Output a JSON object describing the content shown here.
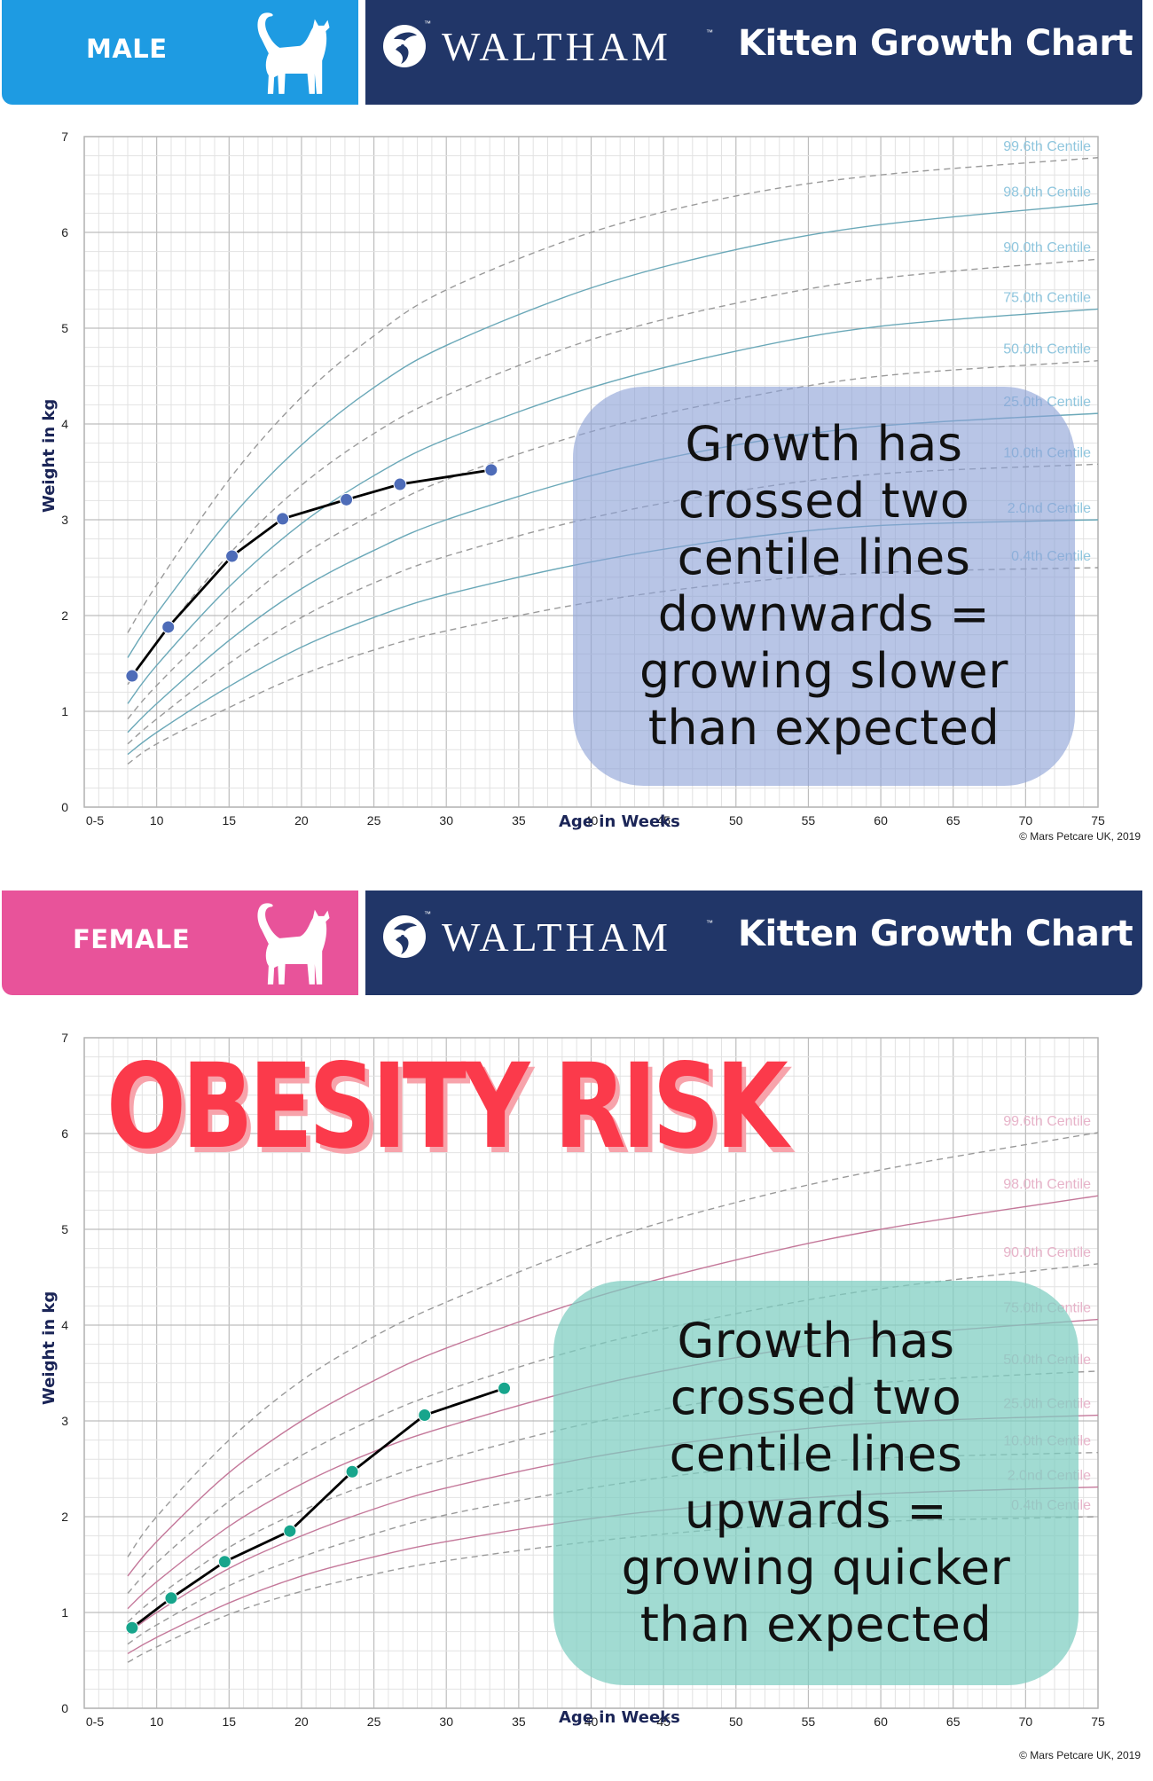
{
  "male": {
    "sex_label": "MALE",
    "brand": "WALTHAM",
    "tm": "™",
    "title": "Kitten Growth Chart",
    "y_axis_title": "Weight in kg",
    "x_axis_title": "Age in Weeks",
    "copyright": "© Mars Petcare UK, 2019",
    "callout": [
      "Growth has",
      "crossed two",
      "centile lines",
      "downwards =",
      "growing slower",
      "than expected"
    ],
    "colors": {
      "panel": "#1e9be2",
      "curve": "#6aa8b8",
      "label": "#8fc6de",
      "point": "#4e6cb8",
      "callout_bg": "#9aaedb"
    }
  },
  "female": {
    "sex_label": "FEMALE",
    "brand": "WALTHAM",
    "tm": "™",
    "title": "Kitten Growth Chart",
    "y_axis_title": "Weight in kg",
    "x_axis_title": "Age in Weeks",
    "copyright": "© Mars Petcare UK, 2019",
    "banner": "OBESITY RISK",
    "callout": [
      "Growth has",
      "crossed two",
      "centile lines",
      "upwards =",
      "growing quicker",
      "than expected"
    ],
    "colors": {
      "panel": "#e8539a",
      "curve": "#c4789a",
      "label": "#e7b3c9",
      "point": "#17a58c",
      "callout_bg": "#8fd3c8"
    }
  },
  "chart_data": [
    {
      "type": "line",
      "title": "WALTHAM Kitten Growth Chart - Male",
      "xlabel": "Age in Weeks",
      "ylabel": "Weight in kg",
      "xlim": [
        5,
        75
      ],
      "ylim": [
        0,
        7
      ],
      "x_ticks": [
        "0-5",
        "10",
        "15",
        "20",
        "25",
        "30",
        "35",
        "40",
        "45",
        "50",
        "55",
        "60",
        "65",
        "70",
        "75"
      ],
      "y_ticks": [
        "0",
        "1",
        "2",
        "3",
        "4",
        "5",
        "6",
        "7"
      ],
      "grid": true,
      "centile_x": [
        8,
        10,
        15,
        20,
        25,
        30,
        40,
        50,
        60,
        75
      ],
      "centiles": [
        {
          "name": "99.6th Centile",
          "style": "dashed",
          "values": [
            1.82,
            2.32,
            3.42,
            4.28,
            4.92,
            5.4,
            6.0,
            6.38,
            6.6,
            6.78
          ]
        },
        {
          "name": "98.0th Centile",
          "style": "solid",
          "values": [
            1.56,
            2.02,
            3.0,
            3.78,
            4.38,
            4.82,
            5.42,
            5.82,
            6.08,
            6.3
          ]
        },
        {
          "name": "90.0th Centile",
          "style": "dashed",
          "values": [
            1.28,
            1.72,
            2.64,
            3.36,
            3.9,
            4.3,
            4.88,
            5.26,
            5.52,
            5.72
          ]
        },
        {
          "name": "75.0th Centile",
          "style": "solid",
          "values": [
            1.08,
            1.48,
            2.3,
            2.96,
            3.46,
            3.84,
            4.38,
            4.76,
            5.02,
            5.2
          ]
        },
        {
          "name": "50.0th Centile",
          "style": "dashed",
          "values": [
            0.92,
            1.27,
            2.01,
            2.62,
            3.06,
            3.42,
            3.92,
            4.26,
            4.5,
            4.66
          ]
        },
        {
          "name": "25.0th Centile",
          "style": "solid",
          "values": [
            0.78,
            1.08,
            1.74,
            2.28,
            2.68,
            3.0,
            3.46,
            3.78,
            3.98,
            4.11
          ]
        },
        {
          "name": "10.0th Centile",
          "style": "dashed",
          "values": [
            0.66,
            0.92,
            1.5,
            1.98,
            2.34,
            2.62,
            3.02,
            3.3,
            3.48,
            3.58
          ]
        },
        {
          "name": "2.0nd Centile",
          "style": "solid",
          "values": [
            0.55,
            0.78,
            1.26,
            1.67,
            1.98,
            2.22,
            2.56,
            2.8,
            2.94,
            3.0
          ]
        },
        {
          "name": "0.4th Centile",
          "style": "dashed",
          "values": [
            0.45,
            0.66,
            1.04,
            1.38,
            1.64,
            1.84,
            2.14,
            2.34,
            2.45,
            2.5
          ]
        }
      ],
      "series": [
        {
          "name": "Kitten weight",
          "x": [
            8.3,
            10.8,
            15.2,
            18.7,
            23.1,
            26.8,
            33.1
          ],
          "values": [
            1.37,
            1.88,
            2.62,
            3.01,
            3.21,
            3.37,
            3.52
          ]
        }
      ]
    },
    {
      "type": "line",
      "title": "WALTHAM Kitten Growth Chart - Female",
      "xlabel": "Age in Weeks",
      "ylabel": "Weight in kg",
      "xlim": [
        5,
        75
      ],
      "ylim": [
        0,
        7
      ],
      "x_ticks": [
        "0-5",
        "10",
        "15",
        "20",
        "25",
        "30",
        "35",
        "40",
        "45",
        "50",
        "55",
        "60",
        "65",
        "70",
        "75"
      ],
      "y_ticks": [
        "0",
        "1",
        "2",
        "3",
        "4",
        "5",
        "6",
        "7"
      ],
      "grid": true,
      "annotation": "OBESITY RISK",
      "centile_x": [
        8,
        10,
        15,
        20,
        25,
        30,
        40,
        50,
        60,
        75
      ],
      "centiles": [
        {
          "name": "99.6th Centile",
          "style": "dashed",
          "values": [
            1.58,
            2.0,
            2.8,
            3.42,
            3.88,
            4.24,
            4.84,
            5.28,
            5.62,
            6.01
          ]
        },
        {
          "name": "98.0th Centile",
          "style": "solid",
          "values": [
            1.38,
            1.74,
            2.46,
            3.0,
            3.42,
            3.76,
            4.28,
            4.68,
            5.0,
            5.35
          ]
        },
        {
          "name": "90.0th Centile",
          "style": "dashed",
          "values": [
            1.2,
            1.52,
            2.16,
            2.64,
            3.02,
            3.32,
            3.78,
            4.12,
            4.38,
            4.64
          ]
        },
        {
          "name": "75.0th Centile",
          "style": "solid",
          "values": [
            1.04,
            1.32,
            1.9,
            2.34,
            2.68,
            2.94,
            3.36,
            3.66,
            3.88,
            4.06
          ]
        },
        {
          "name": "50.0th Centile",
          "style": "dashed",
          "values": [
            0.9,
            1.16,
            1.68,
            2.06,
            2.36,
            2.6,
            2.98,
            3.24,
            3.4,
            3.52
          ]
        },
        {
          "name": "25.0th Centile",
          "style": "solid",
          "values": [
            0.78,
            1.0,
            1.46,
            1.8,
            2.08,
            2.3,
            2.62,
            2.84,
            2.98,
            3.06
          ]
        },
        {
          "name": "10.0th Centile",
          "style": "dashed",
          "values": [
            0.67,
            0.87,
            1.28,
            1.58,
            1.82,
            2.02,
            2.3,
            2.5,
            2.61,
            2.67
          ]
        },
        {
          "name": "2.0nd Centile",
          "style": "solid",
          "values": [
            0.57,
            0.74,
            1.1,
            1.38,
            1.58,
            1.74,
            1.98,
            2.14,
            2.24,
            2.31
          ]
        },
        {
          "name": "0.4th Centile",
          "style": "dashed",
          "values": [
            0.48,
            0.64,
            0.98,
            1.22,
            1.4,
            1.54,
            1.74,
            1.88,
            1.95,
            2.0
          ]
        }
      ],
      "series": [
        {
          "name": "Kitten weight",
          "x": [
            8.3,
            11.0,
            14.7,
            19.2,
            23.5,
            28.5,
            34.0
          ],
          "values": [
            0.84,
            1.15,
            1.53,
            1.85,
            2.47,
            3.06,
            3.34
          ]
        }
      ]
    }
  ]
}
